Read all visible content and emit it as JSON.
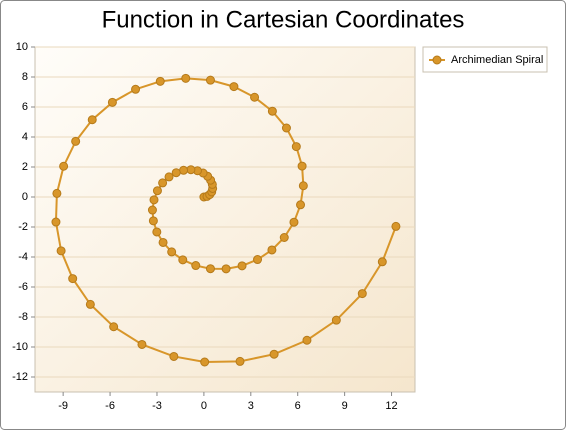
{
  "chart_data": {
    "type": "line",
    "title": "Function in Cartesian Coordinates",
    "series": [
      {
        "name": "Archimedian Spiral",
        "color": "#d8962a",
        "x": [
          0,
          0.2,
          0.37,
          0.5,
          0.56,
          0.54,
          0.43,
          0.24,
          -0.05,
          -0.41,
          -0.83,
          -1.3,
          -1.77,
          -2.23,
          -2.64,
          -2.97,
          -3.19,
          -3.29,
          -3.23,
          -3.01,
          -2.61,
          -2.06,
          -1.35,
          -0.52,
          0.42,
          1.42,
          2.44,
          3.43,
          4.35,
          5.14,
          5.76,
          6.18,
          6.36,
          6.28,
          5.91,
          5.28,
          4.38,
          3.24,
          1.92,
          0.42,
          -1.16,
          -2.79,
          -4.37,
          -5.85,
          -7.14,
          -8.2,
          -8.97,
          -9.4,
          -9.46,
          -9.13,
          -8.39,
          -7.26,
          -5.77,
          -3.96,
          -1.92,
          0.05,
          2.31,
          4.49,
          6.59,
          8.47,
          10.13,
          11.41,
          12.28
        ],
        "y": [
          0,
          0.04,
          0.16,
          0.34,
          0.57,
          0.84,
          1.12,
          1.38,
          1.6,
          1.75,
          1.82,
          1.78,
          1.62,
          1.34,
          0.94,
          0.42,
          -0.19,
          -0.87,
          -1.59,
          -2.33,
          -3.03,
          -3.66,
          -4.19,
          -4.57,
          -4.78,
          -4.79,
          -4.59,
          -4.17,
          -3.53,
          -2.7,
          -1.68,
          -0.52,
          0.75,
          2.06,
          3.36,
          4.6,
          5.72,
          6.65,
          7.36,
          7.79,
          7.91,
          7.71,
          7.18,
          6.31,
          5.15,
          3.71,
          2.05,
          0.24,
          -1.67,
          -3.59,
          -5.44,
          -7.16,
          -8.65,
          -9.83,
          -10.63,
          -11,
          -10.96,
          -10.48,
          -9.55,
          -8.21,
          -6.44,
          -4.32,
          -1.96
        ]
      }
    ],
    "xlim": [
      -10.8,
      13.5
    ],
    "ylim": [
      -13,
      10
    ],
    "xticks": [
      -9,
      -6,
      -3,
      0,
      3,
      6,
      9,
      12
    ],
    "yticks": [
      -12,
      -10,
      -8,
      -6,
      -4,
      -2,
      0,
      2,
      4,
      6,
      8,
      10
    ],
    "grid": true,
    "legend": "right"
  }
}
